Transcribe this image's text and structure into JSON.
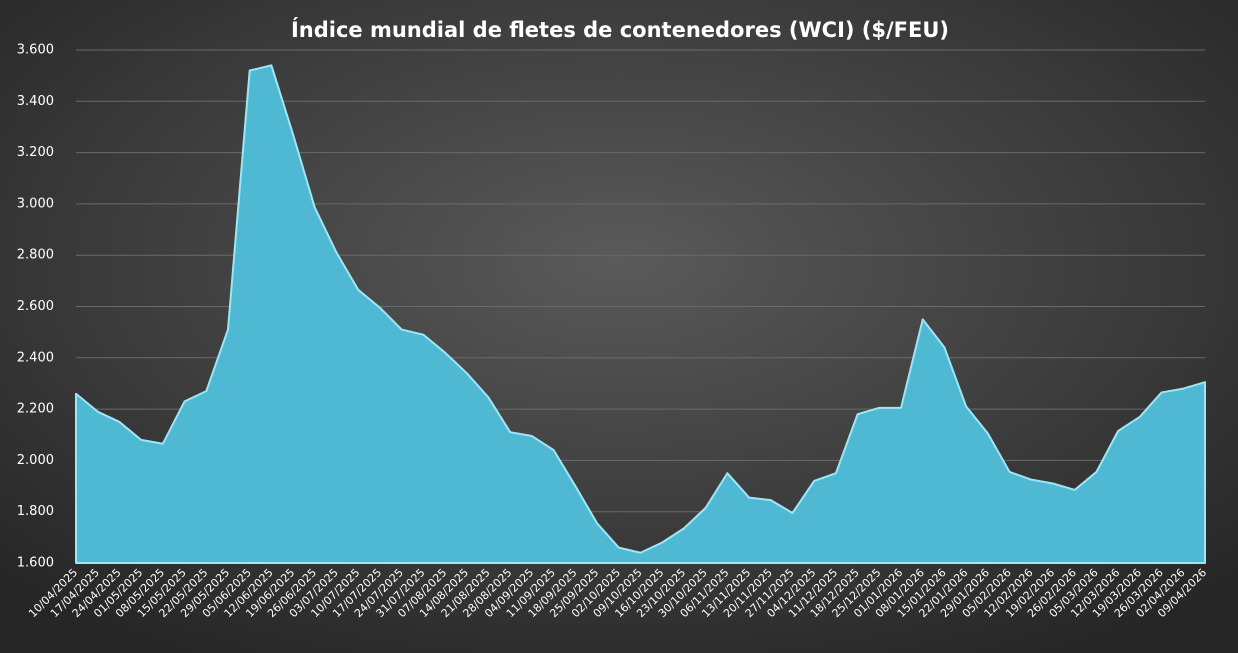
{
  "chart_data": {
    "type": "area",
    "title": "Índice mundial de fletes de contenedores (WCI) ($/FEU)",
    "categories": [
      "10/04/2025",
      "17/04/2025",
      "24/04/2025",
      "01/05/2025",
      "08/05/2025",
      "15/05/2025",
      "22/05/2025",
      "29/05/2025",
      "05/06/2025",
      "12/06/2025",
      "19/06/2025",
      "26/06/2025",
      "03/07/2025",
      "10/07/2025",
      "17/07/2025",
      "24/07/2025",
      "31/07/2025",
      "07/08/2025",
      "14/08/2025",
      "21/08/2025",
      "28/08/2025",
      "04/09/2025",
      "11/09/2025",
      "18/09/2025",
      "25/09/2025",
      "02/10/2025",
      "09/10/2025",
      "16/10/2025",
      "23/10/2025",
      "30/10/2025",
      "06/11/2025",
      "13/11/2025",
      "20/11/2025",
      "27/11/2025",
      "04/12/2025",
      "11/12/2025",
      "18/12/2025",
      "25/12/2025",
      "01/01/2026",
      "08/01/2026",
      "15/01/2026",
      "22/01/2026",
      "29/01/2026",
      "05/02/2026",
      "12/02/2026",
      "19/02/2026",
      "26/02/2026",
      "05/03/2026",
      "12/03/2026",
      "19/03/2026",
      "26/03/2026",
      "02/04/2026",
      "09/04/2026"
    ],
    "values": [
      2260,
      2190,
      2150,
      2080,
      2065,
      2230,
      2270,
      2510,
      3520,
      3540,
      3270,
      2985,
      2810,
      2665,
      2595,
      2510,
      2490,
      2420,
      2340,
      2245,
      2110,
      2095,
      2040,
      1900,
      1755,
      1660,
      1640,
      1680,
      1735,
      1815,
      1950,
      1855,
      1845,
      1795,
      1920,
      1950,
      2180,
      2205,
      2205,
      2550,
      2440,
      2210,
      2105,
      1955,
      1925,
      1910,
      1885,
      1955,
      2115,
      2170,
      2265,
      2280,
      2305
    ],
    "color": "#4fb8d3",
    "ylim": [
      1600,
      3600
    ],
    "yticks": [
      {
        "value": 1600,
        "label": "1.600"
      },
      {
        "value": 1800,
        "label": "1.800"
      },
      {
        "value": 2000,
        "label": "2.000"
      },
      {
        "value": 2200,
        "label": "2.200"
      },
      {
        "value": 2400,
        "label": "2.400"
      },
      {
        "value": 2600,
        "label": "2.600"
      },
      {
        "value": 2800,
        "label": "2.800"
      },
      {
        "value": 3000,
        "label": "3.000"
      },
      {
        "value": 3200,
        "label": "3.200"
      },
      {
        "value": 3400,
        "label": "3.400"
      },
      {
        "value": 3600,
        "label": "3.600"
      }
    ],
    "grid": true
  }
}
